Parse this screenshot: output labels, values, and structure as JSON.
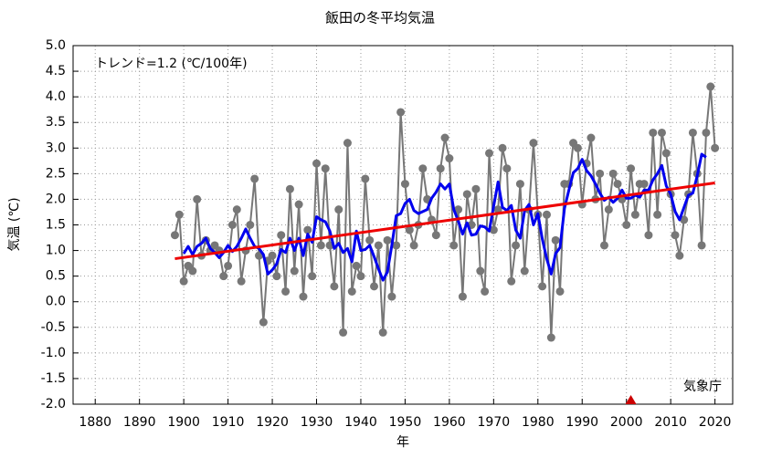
{
  "chart_data": {
    "type": "line",
    "title": "飯田の冬平均気温",
    "x_label": "年",
    "y_label": "気温 (℃)",
    "annotations": [
      "トレンド=1.2 (℃/100年)",
      "気象庁"
    ],
    "x": [
      1898,
      1899,
      1900,
      1901,
      1902,
      1903,
      1904,
      1905,
      1906,
      1907,
      1908,
      1909,
      1910,
      1911,
      1912,
      1913,
      1914,
      1915,
      1916,
      1917,
      1918,
      1919,
      1920,
      1921,
      1922,
      1923,
      1924,
      1925,
      1926,
      1927,
      1928,
      1929,
      1930,
      1931,
      1932,
      1933,
      1934,
      1935,
      1936,
      1937,
      1938,
      1939,
      1940,
      1941,
      1942,
      1943,
      1944,
      1945,
      1946,
      1947,
      1948,
      1949,
      1950,
      1951,
      1952,
      1953,
      1954,
      1955,
      1956,
      1957,
      1958,
      1959,
      1960,
      1961,
      1962,
      1963,
      1964,
      1965,
      1966,
      1967,
      1968,
      1969,
      1970,
      1971,
      1972,
      1973,
      1974,
      1975,
      1976,
      1977,
      1978,
      1979,
      1980,
      1981,
      1982,
      1983,
      1984,
      1985,
      1986,
      1987,
      1988,
      1989,
      1990,
      1991,
      1992,
      1993,
      1994,
      1995,
      1996,
      1997,
      1998,
      1999,
      2000,
      2001,
      2002,
      2003,
      2004,
      2005,
      2006,
      2007,
      2008,
      2009,
      2010,
      2011,
      2012,
      2013,
      2014,
      2015,
      2016,
      2017,
      2018,
      2019,
      2020
    ],
    "series": [
      {
        "color": "#777777",
        "markers": true,
        "values": [
          1.3,
          1.7,
          0.4,
          0.7,
          0.6,
          2.0,
          0.9,
          1.2,
          1.0,
          1.1,
          1.0,
          0.5,
          0.7,
          1.5,
          1.8,
          0.4,
          1.0,
          1.5,
          2.4,
          0.9,
          -0.4,
          0.8,
          0.9,
          0.5,
          1.3,
          0.2,
          2.2,
          0.6,
          1.9,
          0.1,
          1.4,
          0.5,
          2.7,
          1.1,
          2.6,
          1.1,
          0.3,
          1.8,
          -0.6,
          3.1,
          0.2,
          0.7,
          0.5,
          2.4,
          1.2,
          0.3,
          1.1,
          -0.6,
          1.2,
          0.1,
          1.1,
          3.7,
          2.3,
          1.4,
          1.1,
          1.5,
          2.6,
          2.0,
          1.6,
          1.3,
          2.6,
          3.2,
          2.8,
          1.1,
          1.8,
          0.1,
          2.1,
          1.5,
          2.2,
          0.6,
          0.2,
          2.9,
          1.4,
          1.8,
          3.0,
          2.6,
          0.4,
          1.1,
          2.3,
          0.6,
          1.8,
          3.1,
          1.7,
          0.3,
          1.7,
          -0.7,
          1.2,
          0.2,
          2.3,
          2.3,
          3.1,
          3.0,
          1.9,
          2.7,
          3.2,
          2.0,
          2.5,
          1.1,
          1.8,
          2.5,
          2.3,
          2.0,
          1.5,
          2.6,
          1.7,
          2.3,
          2.3,
          1.3,
          3.3,
          1.7,
          3.3,
          2.9,
          2.1,
          1.3,
          0.9,
          1.6,
          2.1,
          3.3,
          2.5,
          1.1,
          3.3,
          4.2,
          3.0
        ]
      },
      {
        "color": "#0000ee",
        "markers": false,
        "values": [
          null,
          null,
          0.94,
          1.08,
          0.92,
          1.08,
          1.14,
          1.24,
          1.04,
          0.96,
          0.86,
          0.96,
          1.1,
          0.98,
          1.08,
          1.24,
          1.42,
          1.24,
          1.08,
          1.04,
          0.92,
          0.54,
          0.62,
          0.74,
          1.02,
          0.96,
          1.24,
          1.0,
          1.24,
          0.9,
          1.32,
          1.16,
          1.66,
          1.6,
          1.56,
          1.38,
          1.04,
          1.14,
          0.96,
          1.04,
          0.78,
          1.38,
          1.0,
          1.02,
          1.1,
          0.88,
          0.64,
          0.42,
          0.58,
          1.1,
          1.68,
          1.72,
          1.92,
          2.0,
          1.78,
          1.72,
          1.76,
          1.8,
          2.02,
          2.14,
          2.3,
          2.2,
          2.3,
          1.8,
          1.58,
          1.32,
          1.54,
          1.3,
          1.32,
          1.48,
          1.46,
          1.38,
          1.86,
          2.34,
          1.84,
          1.78,
          1.88,
          1.4,
          1.24,
          1.78,
          1.9,
          1.5,
          1.72,
          1.22,
          0.84,
          0.54,
          0.94,
          1.06,
          1.82,
          2.18,
          2.52,
          2.6,
          2.78,
          2.56,
          2.46,
          2.3,
          2.12,
          1.98,
          2.04,
          1.94,
          2.02,
          2.18,
          2.02,
          2.02,
          2.08,
          2.04,
          2.18,
          2.18,
          2.38,
          2.5,
          2.66,
          2.26,
          2.1,
          1.76,
          1.6,
          1.84,
          2.08,
          2.12,
          2.46,
          2.88,
          2.82,
          null,
          null
        ]
      }
    ],
    "trend": {
      "x": [
        1898,
        2020
      ],
      "values": [
        0.84,
        2.32
      ],
      "color": "#ee0000"
    },
    "event_markers": [
      {
        "x": 2001,
        "color": "#cc0000"
      }
    ],
    "xlim": [
      1875,
      2024
    ],
    "ylim": [
      -2,
      5
    ],
    "xticks": [
      1880,
      1890,
      1900,
      1910,
      1920,
      1930,
      1940,
      1950,
      1960,
      1970,
      1980,
      1990,
      2000,
      2010,
      2020
    ],
    "yticks": [
      {
        "value": -2,
        "label": "-2.0"
      },
      {
        "value": -1.5,
        "label": "-1.5"
      },
      {
        "value": -1,
        "label": "-1.0"
      },
      {
        "value": -0.5,
        "label": "-0.5"
      },
      {
        "value": 0,
        "label": "0.0"
      },
      {
        "value": 0.5,
        "label": "0.5"
      },
      {
        "value": 1,
        "label": "1.0"
      },
      {
        "value": 1.5,
        "label": "1.5"
      },
      {
        "value": 2,
        "label": "2.0"
      },
      {
        "value": 2.5,
        "label": "2.5"
      },
      {
        "value": 3,
        "label": "3.0"
      },
      {
        "value": 3.5,
        "label": "3.5"
      },
      {
        "value": 4,
        "label": "4.0"
      },
      {
        "value": 4.5,
        "label": "4.5"
      },
      {
        "value": 5,
        "label": "5.0"
      }
    ],
    "grid": true
  }
}
